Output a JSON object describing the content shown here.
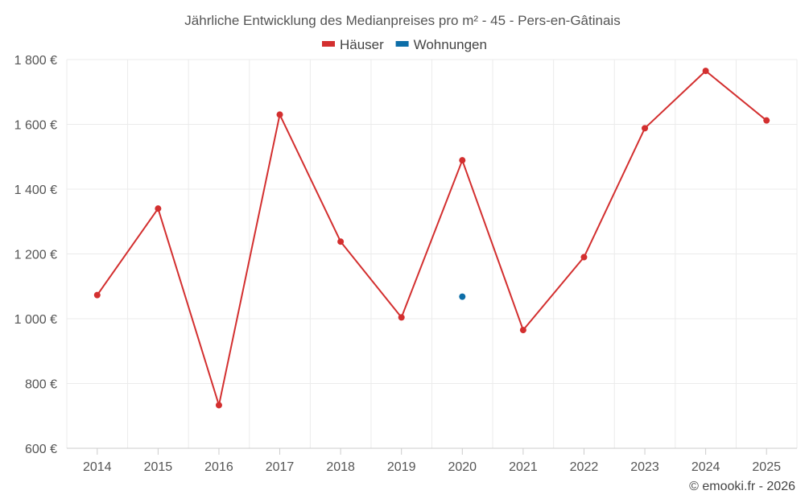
{
  "chart_data": {
    "type": "line",
    "title": "Jährliche Entwicklung des Medianpreises pro m² - 45 - Pers-en-Gâtinais",
    "categories": [
      "2014",
      "2015",
      "2016",
      "2017",
      "2018",
      "2019",
      "2020",
      "2021",
      "2022",
      "2023",
      "2024",
      "2025"
    ],
    "ylim": [
      600,
      1800
    ],
    "yticks": [
      600,
      800,
      1000,
      1200,
      1400,
      1600,
      1800
    ],
    "ytick_labels": [
      "600 €",
      "800 €",
      "1 000 €",
      "1 200 €",
      "1 400 €",
      "1 600 €",
      "1 800 €"
    ],
    "legend_position": "top-center",
    "grid": true,
    "series": [
      {
        "name": "Häuser",
        "color": "#d32f2f",
        "values": [
          1073,
          1340,
          733,
          1630,
          1238,
          1004,
          1489,
          965,
          1190,
          1588,
          1765,
          1612
        ]
      },
      {
        "name": "Wohnungen",
        "color": "#0d6ea8",
        "values": [
          null,
          null,
          null,
          null,
          null,
          null,
          1068,
          null,
          null,
          null,
          null,
          null
        ]
      }
    ],
    "credit": "© emooki.fr - 2026"
  }
}
